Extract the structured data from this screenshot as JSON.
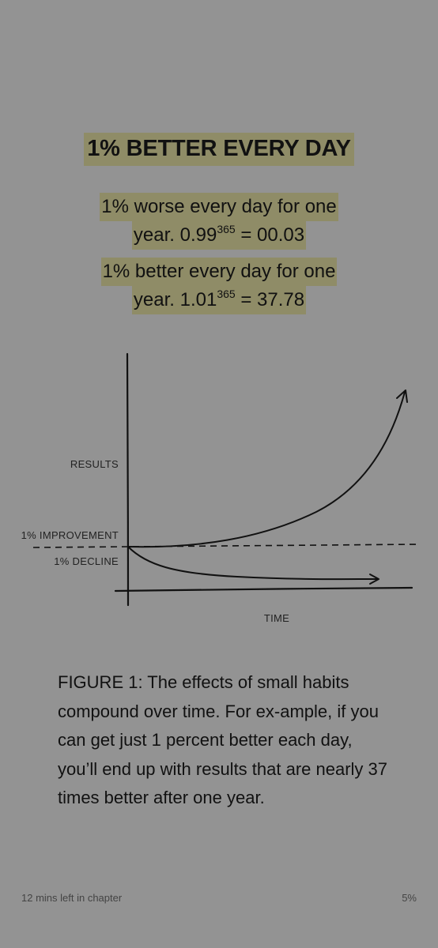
{
  "heading": "1% BETTER EVERY DAY",
  "statements": [
    {
      "line1": "1% worse every day for one",
      "line2_prefix": "year. 0.99",
      "exponent": "365",
      "line2_suffix": " = 00.03"
    },
    {
      "line1": "1% better every day for one",
      "line2_prefix": "year. 1.01",
      "exponent": "365",
      "line2_suffix": " = 37.78"
    }
  ],
  "figure": {
    "y_label": "RESULTS",
    "improvement_label": "1% IMPROVEMENT",
    "decline_label": "1% DECLINE",
    "x_label": "TIME"
  },
  "caption": "FIGURE 1: The effects of small habits compound over time. For ex-ample, if you can get just 1 percent better each day, you’ll end up with results that are nearly 37 times better after one year.",
  "footer": {
    "time_left": "12 mins left in chapter",
    "progress": "5%"
  },
  "colors": {
    "background": "#939393",
    "highlight": "#8f8c67"
  }
}
